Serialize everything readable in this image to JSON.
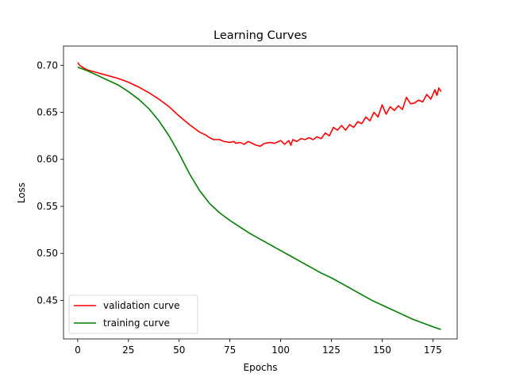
{
  "chart_data": {
    "type": "line",
    "title": "Learning Curves",
    "xlabel": "Epochs",
    "ylabel": "Loss",
    "xlim": [
      -7,
      187
    ],
    "ylim": [
      0.409,
      0.7205
    ],
    "xticks": [
      0,
      25,
      50,
      75,
      100,
      125,
      150,
      175
    ],
    "yticks": [
      0.45,
      0.5,
      0.55,
      0.6,
      0.65,
      0.7
    ],
    "ytick_labels": [
      "0.45",
      "0.50",
      "0.55",
      "0.60",
      "0.65",
      "0.70"
    ],
    "grid": false,
    "legend_position": "lower-left",
    "series": [
      {
        "name": "validation curve",
        "color": "#ff0000",
        "points": [
          [
            0,
            0.703
          ],
          [
            1,
            0.7
          ],
          [
            3,
            0.697
          ],
          [
            5,
            0.695
          ],
          [
            10,
            0.692
          ],
          [
            15,
            0.689
          ],
          [
            20,
            0.686
          ],
          [
            25,
            0.682
          ],
          [
            30,
            0.677
          ],
          [
            35,
            0.671
          ],
          [
            40,
            0.664
          ],
          [
            45,
            0.656
          ],
          [
            50,
            0.646
          ],
          [
            55,
            0.637
          ],
          [
            60,
            0.629
          ],
          [
            63,
            0.626
          ],
          [
            65,
            0.623
          ],
          [
            67,
            0.621
          ],
          [
            70,
            0.621
          ],
          [
            72,
            0.619
          ],
          [
            75,
            0.618
          ],
          [
            77,
            0.619
          ],
          [
            78,
            0.617
          ],
          [
            80,
            0.618
          ],
          [
            82,
            0.616
          ],
          [
            84,
            0.619
          ],
          [
            86,
            0.617
          ],
          [
            88,
            0.615
          ],
          [
            90,
            0.614
          ],
          [
            92,
            0.617
          ],
          [
            95,
            0.618
          ],
          [
            97,
            0.617
          ],
          [
            100,
            0.62
          ],
          [
            102,
            0.616
          ],
          [
            104,
            0.62
          ],
          [
            105,
            0.615
          ],
          [
            106,
            0.621
          ],
          [
            108,
            0.619
          ],
          [
            110,
            0.622
          ],
          [
            112,
            0.621
          ],
          [
            114,
            0.623
          ],
          [
            116,
            0.621
          ],
          [
            118,
            0.624
          ],
          [
            120,
            0.622
          ],
          [
            122,
            0.628
          ],
          [
            124,
            0.625
          ],
          [
            126,
            0.634
          ],
          [
            128,
            0.631
          ],
          [
            130,
            0.636
          ],
          [
            132,
            0.631
          ],
          [
            134,
            0.637
          ],
          [
            136,
            0.634
          ],
          [
            138,
            0.64
          ],
          [
            140,
            0.638
          ],
          [
            142,
            0.645
          ],
          [
            144,
            0.641
          ],
          [
            146,
            0.65
          ],
          [
            148,
            0.645
          ],
          [
            150,
            0.658
          ],
          [
            152,
            0.648
          ],
          [
            154,
            0.656
          ],
          [
            156,
            0.652
          ],
          [
            158,
            0.657
          ],
          [
            160,
            0.653
          ],
          [
            162,
            0.666
          ],
          [
            164,
            0.659
          ],
          [
            166,
            0.66
          ],
          [
            168,
            0.663
          ],
          [
            170,
            0.661
          ],
          [
            172,
            0.669
          ],
          [
            174,
            0.664
          ],
          [
            176,
            0.674
          ],
          [
            177,
            0.668
          ],
          [
            178,
            0.676
          ],
          [
            179,
            0.672
          ]
        ]
      },
      {
        "name": "training curve",
        "color": "#008000",
        "points": [
          [
            0,
            0.698
          ],
          [
            5,
            0.694
          ],
          [
            10,
            0.689
          ],
          [
            15,
            0.684
          ],
          [
            20,
            0.679
          ],
          [
            25,
            0.672
          ],
          [
            30,
            0.664
          ],
          [
            35,
            0.654
          ],
          [
            40,
            0.641
          ],
          [
            45,
            0.625
          ],
          [
            50,
            0.606
          ],
          [
            55,
            0.585
          ],
          [
            60,
            0.567
          ],
          [
            65,
            0.553
          ],
          [
            70,
            0.543
          ],
          [
            75,
            0.535
          ],
          [
            80,
            0.528
          ],
          [
            85,
            0.521
          ],
          [
            90,
            0.515
          ],
          [
            95,
            0.509
          ],
          [
            100,
            0.503
          ],
          [
            105,
            0.497
          ],
          [
            110,
            0.491
          ],
          [
            115,
            0.485
          ],
          [
            120,
            0.479
          ],
          [
            125,
            0.474
          ],
          [
            130,
            0.468
          ],
          [
            135,
            0.462
          ],
          [
            140,
            0.456
          ],
          [
            145,
            0.45
          ],
          [
            150,
            0.445
          ],
          [
            155,
            0.44
          ],
          [
            160,
            0.435
          ],
          [
            165,
            0.43
          ],
          [
            170,
            0.426
          ],
          [
            175,
            0.422
          ],
          [
            179,
            0.419
          ]
        ]
      }
    ]
  }
}
